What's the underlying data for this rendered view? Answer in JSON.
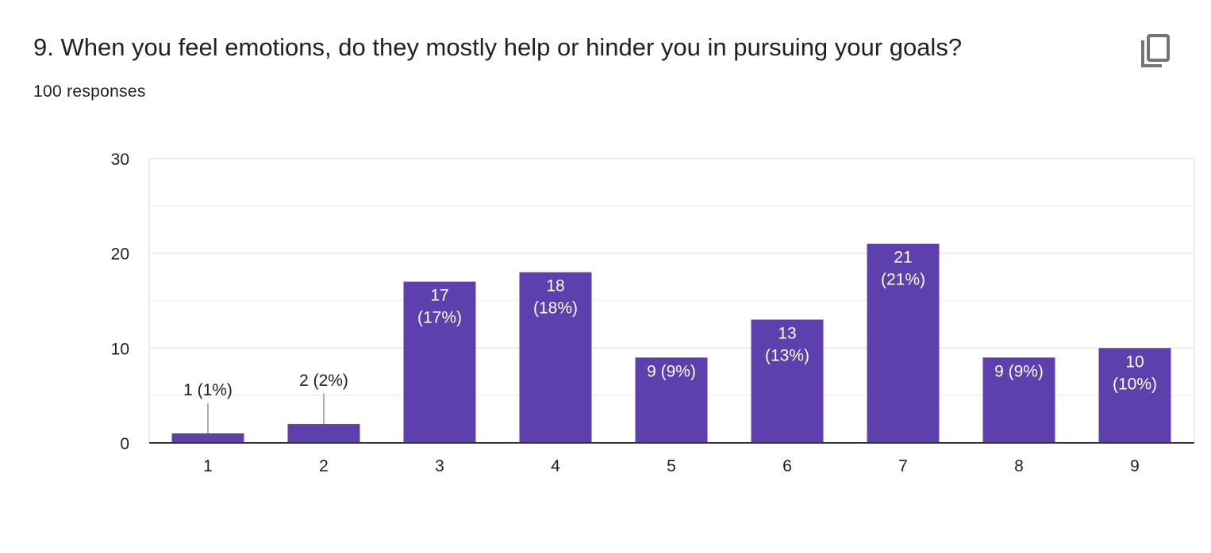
{
  "question": {
    "title": "9. When you feel emotions, do they mostly help or hinder you in pursuing your goals?",
    "responses": "100 responses"
  },
  "toolbar": {
    "copy_icon": "copy-icon"
  },
  "colors": {
    "bar": "#5e3fae",
    "grid": "#e8e8e8",
    "axis": "#333333",
    "text": "#202124",
    "bar_label": "#ffffff",
    "icon": "#757575"
  },
  "chart_data": {
    "type": "bar",
    "categories": [
      "1",
      "2",
      "3",
      "4",
      "5",
      "6",
      "7",
      "8",
      "9"
    ],
    "values": [
      1,
      2,
      17,
      18,
      9,
      13,
      21,
      9,
      10
    ],
    "labels": [
      [
        "1 (1%)"
      ],
      [
        "2 (2%)"
      ],
      [
        "17",
        "(17%)"
      ],
      [
        "18",
        "(18%)"
      ],
      [
        "9 (9%)"
      ],
      [
        "13",
        "(13%)"
      ],
      [
        "21",
        "(21%)"
      ],
      [
        "9 (9%)"
      ],
      [
        "10",
        "(10%)"
      ]
    ],
    "ylim": [
      0,
      30
    ],
    "yticks": [
      "0",
      "10",
      "20",
      "30"
    ],
    "grid": true,
    "xlabel": "",
    "ylabel": ""
  }
}
